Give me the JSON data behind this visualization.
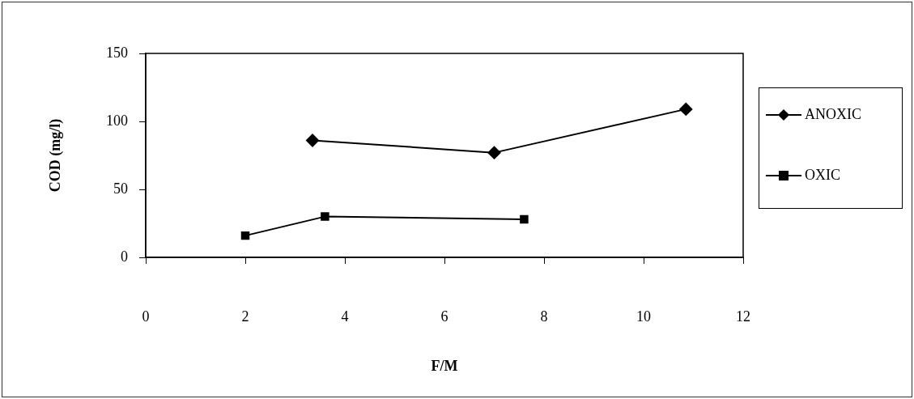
{
  "chart_data": {
    "type": "line",
    "xlabel": "F/M",
    "ylabel": "COD (mg/l)",
    "xlim": [
      0,
      12
    ],
    "xticks": [
      0,
      2,
      4,
      6,
      8,
      10,
      12
    ],
    "ylim": [
      0,
      150
    ],
    "yticks": [
      0,
      50,
      100,
      150
    ],
    "grid": false,
    "legend": "right",
    "line_style": "solid",
    "series": [
      {
        "name": "ANOXIC",
        "color": "#000000",
        "marker": "diamond",
        "x": [
          3.35,
          7.0,
          10.85
        ],
        "values": [
          86,
          77,
          109
        ]
      },
      {
        "name": "OXIC",
        "color": "#000000",
        "marker": "square",
        "x": [
          2.0,
          3.6,
          7.6
        ],
        "values": [
          16,
          30,
          28
        ]
      }
    ]
  }
}
